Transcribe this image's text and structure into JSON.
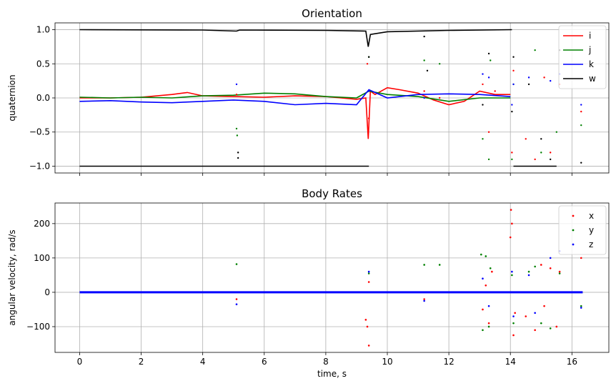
{
  "chart_data": [
    {
      "type": "line",
      "title": "Orientation",
      "xlabel": "",
      "ylabel": "quaternion",
      "xlim": [
        -0.8,
        17.2
      ],
      "ylim": [
        -1.1,
        1.1
      ],
      "xticks": [
        0,
        2,
        4,
        6,
        8,
        10,
        12,
        14,
        16
      ],
      "xtick_labels_visible": false,
      "yticks": [
        -1.0,
        -0.5,
        0.0,
        0.5,
        1.0
      ],
      "ytick_labels": [
        "−1.0",
        "−0.5",
        "0.0",
        "0.5",
        "1.0"
      ],
      "grid": true,
      "legend_position": "top-right",
      "series": [
        {
          "name": "i",
          "color": "#ff0000",
          "style": "line",
          "x": [
            0,
            1,
            2,
            3,
            3.5,
            4,
            5,
            6,
            7,
            8,
            8.5,
            9,
            9.3,
            9.38,
            9.45,
            9.6,
            10,
            10.4,
            11,
            11.5,
            12,
            12.5,
            13,
            13.5,
            14
          ],
          "y": [
            0.0,
            0.0,
            0.01,
            0.05,
            0.08,
            0.03,
            0.02,
            0.01,
            0.03,
            0.02,
            0.0,
            -0.02,
            0.0,
            -0.6,
            0.1,
            0.05,
            0.15,
            0.12,
            0.07,
            -0.03,
            -0.1,
            -0.05,
            0.1,
            0.05,
            0.05
          ]
        },
        {
          "name": "j",
          "color": "#008000",
          "style": "line",
          "x": [
            0,
            1,
            2,
            3,
            4,
            5,
            6,
            7,
            8,
            9,
            9.4,
            10,
            11,
            12,
            13,
            14
          ],
          "y": [
            0.01,
            0.0,
            0.01,
            0.0,
            0.03,
            0.04,
            0.07,
            0.06,
            0.02,
            0.0,
            0.1,
            0.05,
            0.02,
            -0.05,
            0.0,
            0.0
          ]
        },
        {
          "name": "k",
          "color": "#0000ff",
          "style": "line",
          "x": [
            0,
            1,
            2,
            3,
            4,
            5,
            6,
            7,
            8,
            9,
            9.4,
            10,
            11,
            12,
            13,
            14
          ],
          "y": [
            -0.05,
            -0.04,
            -0.06,
            -0.07,
            -0.05,
            -0.03,
            -0.05,
            -0.1,
            -0.08,
            -0.1,
            0.12,
            0.0,
            0.05,
            0.06,
            0.05,
            0.02
          ]
        },
        {
          "name": "w",
          "color": "#000000",
          "style": "line",
          "x": [
            0,
            4,
            5.1,
            5.2,
            8,
            9.3,
            9.38,
            9.45,
            10,
            12,
            14.05
          ],
          "y": [
            1.0,
            0.995,
            0.98,
            0.995,
            0.99,
            0.98,
            0.75,
            0.93,
            0.97,
            0.99,
            1.0
          ]
        },
        {
          "name": "w (negated)",
          "color": "#000000",
          "style": "line",
          "in_legend": false,
          "x": [
            0,
            9.4
          ],
          "y": [
            -1.0,
            -1.0
          ]
        },
        {
          "name": "w (late)",
          "color": "#000000",
          "style": "line",
          "in_legend": false,
          "x": [
            14.1,
            14.6,
            15.0,
            15.5
          ],
          "y": [
            -1.0,
            -1.0,
            -1.0,
            -1.0
          ]
        }
      ],
      "scatter_series": [
        {
          "name": "i",
          "color": "#ff0000",
          "x": [
            5.1,
            9.35,
            9.4,
            11.2,
            11.7,
            13.1,
            13.3,
            13.5,
            14.05,
            14.1,
            14.5,
            14.8,
            15.1,
            15.3,
            15.6,
            16.3
          ],
          "y": [
            0.05,
            0.5,
            -0.3,
            0.1,
            0.0,
            0.2,
            -0.5,
            0.1,
            -0.8,
            0.4,
            -0.6,
            -0.9,
            0.3,
            -0.8,
            0.2,
            -0.2
          ]
        },
        {
          "name": "j",
          "color": "#008000",
          "x": [
            5.1,
            5.12,
            9.4,
            11.2,
            11.7,
            13.1,
            13.3,
            13.35,
            14.05,
            14.1,
            14.8,
            15.0,
            15.5,
            16.3
          ],
          "y": [
            -0.45,
            -0.55,
            0.6,
            0.55,
            0.5,
            -0.6,
            -0.9,
            0.55,
            -0.9,
            0.2,
            0.7,
            -0.8,
            -0.5,
            -0.4
          ]
        },
        {
          "name": "k",
          "color": "#0000ff",
          "x": [
            5.1,
            9.4,
            11.2,
            13.1,
            13.3,
            14.05,
            14.1,
            14.6,
            15.3,
            15.6,
            16.3
          ],
          "y": [
            0.2,
            0.1,
            0.0,
            0.35,
            0.3,
            -0.1,
            0.2,
            0.3,
            0.25,
            0.35,
            -0.1
          ]
        },
        {
          "name": "w",
          "color": "#000000",
          "x": [
            5.15,
            5.15,
            9.4,
            11.2,
            11.3,
            13.1,
            13.3,
            14.05,
            14.1,
            14.6,
            15.0,
            15.3,
            15.6,
            16.3
          ],
          "y": [
            -0.8,
            -0.88,
            0.6,
            0.9,
            0.4,
            -0.1,
            0.65,
            -0.2,
            0.6,
            0.2,
            -0.6,
            -0.9,
            0.7,
            -0.95
          ]
        }
      ]
    },
    {
      "type": "scatter",
      "title": "Body Rates",
      "xlabel": "time, s",
      "ylabel": "angular velocity, rad/s",
      "xlim": [
        -0.8,
        17.2
      ],
      "ylim": [
        -175,
        260
      ],
      "xticks": [
        0,
        2,
        4,
        6,
        8,
        10,
        12,
        14,
        16
      ],
      "xtick_labels": [
        "0",
        "2",
        "4",
        "6",
        "8",
        "10",
        "12",
        "14",
        "16"
      ],
      "yticks": [
        -100,
        0,
        100,
        200
      ],
      "ytick_labels": [
        "−100",
        "0",
        "100",
        "200"
      ],
      "grid": true,
      "legend_position": "top-right",
      "baseline": {
        "x_range": [
          0,
          16.35
        ],
        "y": 0
      },
      "series": [
        {
          "name": "x",
          "color": "#ff0000",
          "x": [
            5.1,
            9.3,
            9.35,
            9.4,
            9.4,
            11.2,
            13.1,
            13.2,
            13.3,
            13.4,
            14.0,
            14.02,
            14.05,
            14.1,
            14.15,
            14.5,
            14.8,
            15.0,
            15.1,
            15.3,
            15.5,
            15.6,
            16.3
          ],
          "y": [
            -20,
            -80,
            -100,
            -155,
            30,
            -20,
            -50,
            20,
            -90,
            60,
            160,
            240,
            200,
            -125,
            -60,
            -70,
            -110,
            80,
            -40,
            70,
            -100,
            60,
            100
          ]
        },
        {
          "name": "y",
          "color": "#008000",
          "x": [
            5.1,
            9.4,
            11.2,
            11.7,
            13.05,
            13.1,
            13.2,
            13.3,
            13.35,
            14.05,
            14.1,
            14.6,
            14.8,
            15.0,
            15.3,
            15.6,
            16.3
          ],
          "y": [
            82,
            55,
            80,
            80,
            110,
            -110,
            105,
            -100,
            70,
            50,
            -90,
            60,
            75,
            -90,
            -105,
            55,
            -40
          ]
        },
        {
          "name": "z",
          "color": "#0000ff",
          "x": [
            5.1,
            9.4,
            11.2,
            13.1,
            13.3,
            14.05,
            14.1,
            14.6,
            14.8,
            15.3,
            15.6,
            16.3
          ],
          "y": [
            -35,
            60,
            -25,
            40,
            -40,
            60,
            -70,
            50,
            -60,
            100,
            120,
            -45
          ]
        }
      ]
    }
  ]
}
